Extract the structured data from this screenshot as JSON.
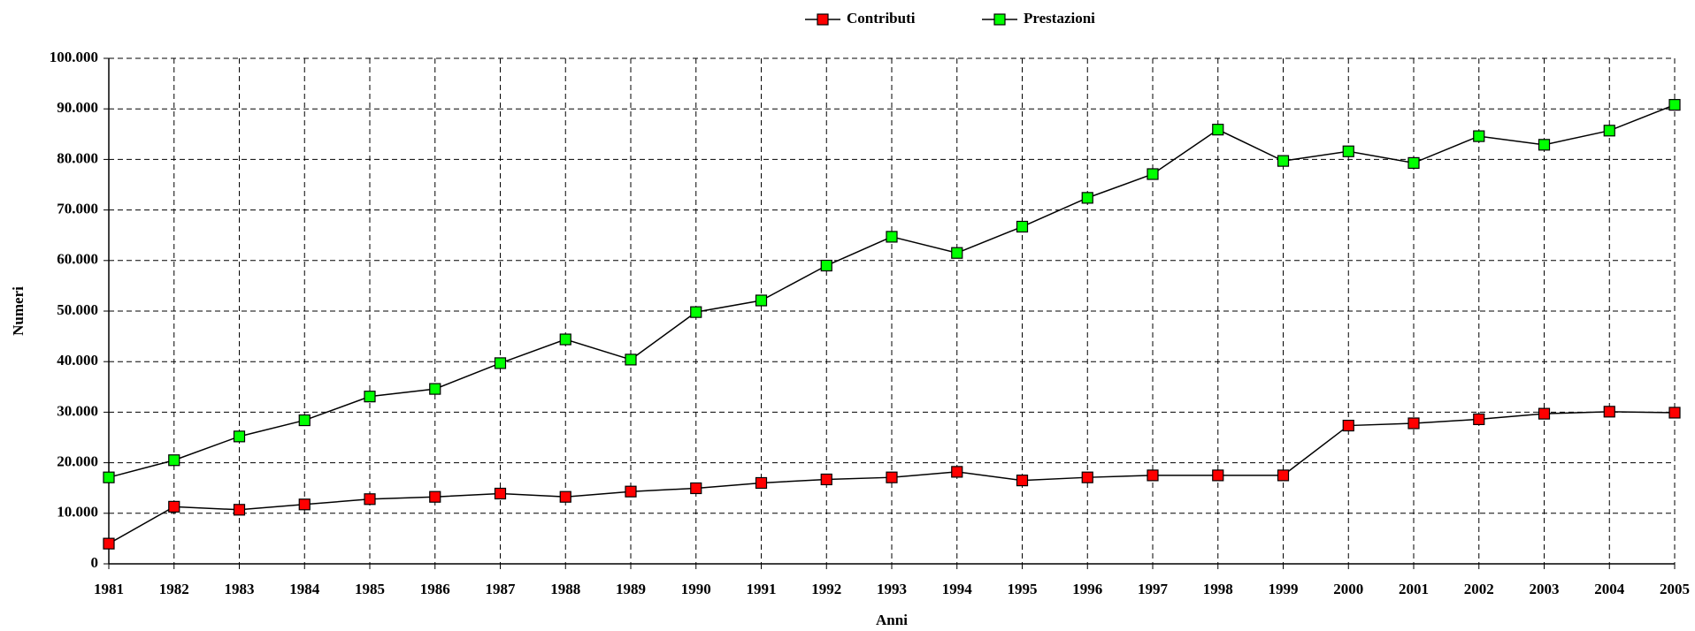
{
  "chart_data": {
    "type": "line",
    "x_label": "Anni",
    "y_label": "Numeri",
    "x": [
      1981,
      1982,
      1983,
      1984,
      1985,
      1986,
      1987,
      1988,
      1989,
      1990,
      1991,
      1992,
      1993,
      1994,
      1995,
      1996,
      1997,
      1998,
      1999,
      2000,
      2001,
      2002,
      2003,
      2004,
      2005
    ],
    "xlim": [
      1981,
      2005
    ],
    "xticks": [
      1981,
      1982,
      1983,
      1984,
      1985,
      1986,
      1987,
      1988,
      1989,
      1990,
      1991,
      1992,
      1993,
      1994,
      1995,
      1996,
      1997,
      1998,
      1999,
      2000,
      2001,
      2002,
      2003,
      2004,
      2005
    ],
    "ylim": [
      0,
      100000
    ],
    "yticks": [
      0,
      {
        "value": 10000,
        "label": "10.000"
      },
      {
        "value": 20000,
        "label": "20.000"
      },
      {
        "value": 30000,
        "label": "30.000"
      },
      {
        "value": 40000,
        "label": "40.000"
      },
      {
        "value": 50000,
        "label": "50.000"
      },
      {
        "value": 60000,
        "label": "60.000"
      },
      {
        "value": 70000,
        "label": "70.000"
      },
      {
        "value": 80000,
        "label": "80.000"
      },
      {
        "value": 90000,
        "label": "90.000"
      },
      {
        "value": 100000,
        "label": "100.000"
      }
    ],
    "grid": true,
    "legend": "top",
    "series": [
      {
        "name": "Contributi",
        "color": "#ff0000",
        "values": [
          4000,
          11300,
          10700,
          11750,
          12800,
          13250,
          13900,
          13250,
          14300,
          14950,
          16000,
          16700,
          17100,
          18200,
          16500,
          17100,
          17500,
          17500,
          17500,
          27350,
          27800,
          28600,
          29700,
          30100,
          29900
        ]
      },
      {
        "name": "Prestazioni",
        "color": "#00ff00",
        "values": [
          17100,
          20500,
          25200,
          28400,
          33100,
          34600,
          39700,
          44400,
          40400,
          49800,
          52100,
          59000,
          64700,
          61500,
          66700,
          72400,
          77100,
          85900,
          79700,
          81600,
          79300,
          84600,
          82900,
          85700,
          90800
        ]
      }
    ]
  }
}
